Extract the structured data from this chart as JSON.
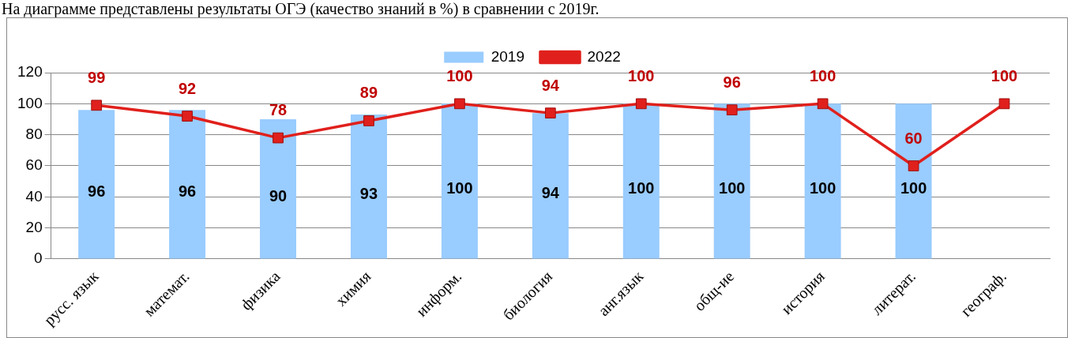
{
  "chart_data": {
    "type": "bar",
    "title": "На диаграмме представлены результаты ОГЭ (качество знаний в %) в сравнении с 2019г.",
    "categories": [
      "русс. язык",
      "математ.",
      "физика",
      "химия",
      "информ.",
      "биология",
      "анг.язык",
      "общ-ие",
      "история",
      "литерат.",
      "географ."
    ],
    "series": [
      {
        "name": "2019",
        "color": "#99ccff",
        "values": [
          96,
          96,
          90,
          93,
          100,
          94,
          100,
          100,
          100,
          100,
          null
        ]
      },
      {
        "name": "2022",
        "type": "line",
        "color": "#e0201c",
        "values": [
          99,
          92,
          78,
          89,
          100,
          94,
          100,
          96,
          100,
          60,
          100
        ]
      }
    ],
    "ylim": [
      0,
      120
    ],
    "yticks": [
      0,
      20,
      40,
      60,
      80,
      100,
      120
    ],
    "grid": "y",
    "legend": "top",
    "marker": "square",
    "line_style": "solid",
    "data_labels": true
  }
}
